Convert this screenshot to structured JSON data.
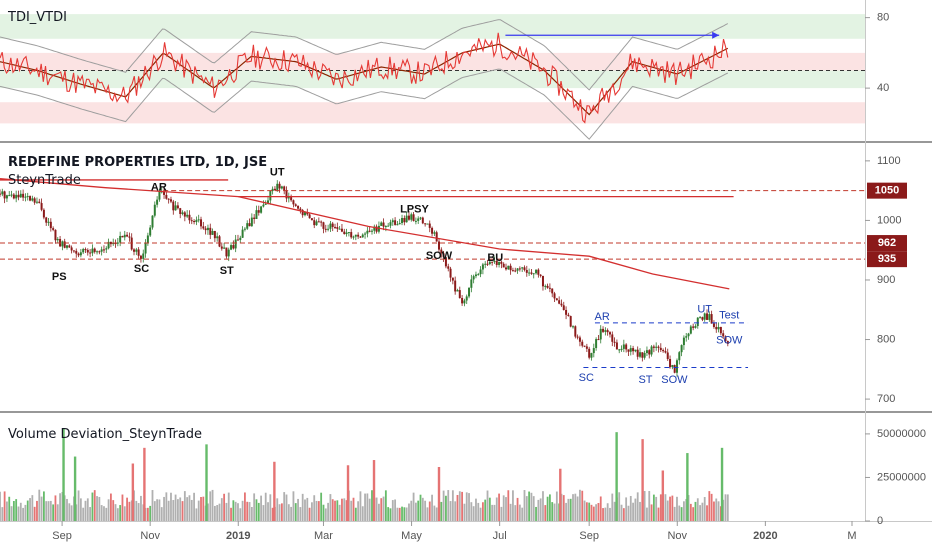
{
  "colors": {
    "up": "#2e7d32",
    "down": "#8b1a1a",
    "red": "#d32f2f",
    "blue": "#1e3a8a",
    "tdi_red": "#e53935",
    "tdi_brown": "#8b2500",
    "band": "#9e9e9e",
    "green_zone": "#e3f3e3",
    "red_zone": "#fbe3e3",
    "vol_up": "#66bb6a",
    "vol_down": "#e57373",
    "vol_neutral": "#b0b0b0",
    "axis_text": "#555555",
    "price_label_bg": "#8b1a1a"
  },
  "indicator": {
    "label": "TDI_VTDI",
    "ticks": [
      "80",
      "40"
    ],
    "ylim": [
      10,
      90
    ],
    "levels": {
      "upper_zone": [
        68,
        82
      ],
      "mid_upper_zone": [
        50,
        60
      ],
      "mid_lower_zone": [
        40,
        50
      ],
      "lower_zone": [
        20,
        32
      ],
      "midline": 50
    }
  },
  "main": {
    "title": "REDEFINE PROPERTIES LTD, 1D, JSE",
    "subtitle": "SteynTrade",
    "ylim": [
      680,
      1130
    ],
    "ticks": [
      "1100",
      "1000",
      "900",
      "800",
      "700"
    ],
    "price_labels": [
      {
        "text": "1050",
        "value": 1050
      },
      {
        "text": "962",
        "value": 962
      },
      {
        "text": "935",
        "value": 935
      }
    ],
    "wyckoff_labels": [
      {
        "text": "PS",
        "x": "2018-08-30",
        "y": 905,
        "color": "black"
      },
      {
        "text": "SC",
        "x": "2018-10-26",
        "y": 918,
        "color": "black"
      },
      {
        "text": "AR",
        "x": "2018-11-07",
        "y": 1055,
        "color": "black"
      },
      {
        "text": "ST",
        "x": "2018-12-24",
        "y": 915,
        "color": "black"
      },
      {
        "text": "UT",
        "x": "2019-01-28",
        "y": 1080,
        "color": "black"
      },
      {
        "text": "LPSY",
        "x": "2019-05-03",
        "y": 1018,
        "color": "black"
      },
      {
        "text": "SOW",
        "x": "2019-05-20",
        "y": 940,
        "color": "black"
      },
      {
        "text": "BU",
        "x": "2019-06-28",
        "y": 937,
        "color": "black"
      },
      {
        "text": "AR",
        "x": "2019-09-10",
        "y": 838,
        "color": "blue"
      },
      {
        "text": "SC",
        "x": "2019-08-30",
        "y": 735,
        "color": "blue"
      },
      {
        "text": "ST",
        "x": "2019-10-10",
        "y": 732,
        "color": "blue"
      },
      {
        "text": "SOW",
        "x": "2019-10-30",
        "y": 732,
        "color": "blue"
      },
      {
        "text": "UT",
        "x": "2019-11-20",
        "y": 850,
        "color": "blue"
      },
      {
        "text": "Test",
        "x": "2019-12-07",
        "y": 840,
        "color": "blue"
      },
      {
        "text": "SOW",
        "x": "2019-12-07",
        "y": 798,
        "color": "blue"
      }
    ]
  },
  "volume": {
    "label": "Volume Deviation_SteynTrade",
    "ticks": [
      "50000000",
      "25000000",
      "0"
    ],
    "ylim": [
      0,
      62000000
    ]
  },
  "x_axis": {
    "labels": [
      {
        "text": "Sep",
        "date": "2018-09-01"
      },
      {
        "text": "Nov",
        "date": "2018-11-01"
      },
      {
        "text": "2019",
        "date": "2019-01-01"
      },
      {
        "text": "Mar",
        "date": "2019-03-01"
      },
      {
        "text": "May",
        "date": "2019-05-01"
      },
      {
        "text": "Jul",
        "date": "2019-07-01"
      },
      {
        "text": "Sep",
        "date": "2019-09-01"
      },
      {
        "text": "Nov",
        "date": "2019-11-01"
      },
      {
        "text": "2020",
        "date": "2020-01-01"
      },
      {
        "text": "M",
        "date": "2020-03-01"
      }
    ]
  },
  "chart_data": {
    "type": "line",
    "title": "REDEFINE PROPERTIES LTD, 1D, JSE",
    "x_range": [
      "2018-07-20",
      "2020-03-10"
    ],
    "price_close": {
      "x": [
        "2018-07-20",
        "2018-08-01",
        "2018-08-15",
        "2018-08-30",
        "2018-09-15",
        "2018-10-01",
        "2018-10-15",
        "2018-10-26",
        "2018-11-07",
        "2018-11-20",
        "2018-12-05",
        "2018-12-15",
        "2018-12-24",
        "2019-01-10",
        "2019-01-28",
        "2019-02-10",
        "2019-02-25",
        "2019-03-10",
        "2019-03-25",
        "2019-04-10",
        "2019-04-25",
        "2019-05-03",
        "2019-05-15",
        "2019-05-20",
        "2019-05-28",
        "2019-06-05",
        "2019-06-15",
        "2019-06-28",
        "2019-07-10",
        "2019-07-25",
        "2019-08-05",
        "2019-08-15",
        "2019-08-25",
        "2019-09-01",
        "2019-09-10",
        "2019-09-20",
        "2019-09-30",
        "2019-10-10",
        "2019-10-20",
        "2019-10-30",
        "2019-11-05",
        "2019-11-15",
        "2019-11-22",
        "2019-12-01",
        "2019-12-07"
      ],
      "y": [
        1045,
        1040,
        1030,
        960,
        945,
        955,
        975,
        930,
        1050,
        1015,
        1000,
        975,
        945,
        1000,
        1060,
        1020,
        995,
        985,
        975,
        990,
        1000,
        1005,
        985,
        955,
        905,
        860,
        915,
        930,
        915,
        915,
        880,
        845,
        800,
        775,
        820,
        790,
        780,
        775,
        790,
        745,
        800,
        830,
        840,
        810,
        790
      ]
    },
    "series": [
      {
        "name": "sma",
        "x": [
          "2018-07-20",
          "2018-10-01",
          "2019-01-01",
          "2019-04-01",
          "2019-07-01",
          "2019-09-01",
          "2019-10-15",
          "2019-12-07"
        ],
        "y": [
          1070,
          1055,
          1040,
          990,
          952,
          940,
          910,
          885
        ]
      },
      {
        "name": "resistance_top",
        "x": [
          "2018-07-20",
          "2018-12-25"
        ],
        "y": [
          1068,
          1068
        ]
      },
      {
        "name": "lpsy_resistance",
        "x": [
          "2019-01-01",
          "2019-12-10"
        ],
        "y": [
          1040,
          1040
        ]
      },
      {
        "name": "level_1050",
        "x": [
          "2018-11-10",
          "2020-03-10"
        ],
        "y": [
          1050,
          1050
        ]
      },
      {
        "name": "level_962",
        "x": [
          "2018-07-20",
          "2020-03-10"
        ],
        "y": [
          962,
          962
        ]
      },
      {
        "name": "level_935",
        "x": [
          "2018-07-20",
          "2020-03-10"
        ],
        "y": [
          935,
          935
        ]
      },
      {
        "name": "range_top",
        "x": [
          "2019-09-05",
          "2019-12-20"
        ],
        "y": [
          828,
          828
        ]
      },
      {
        "name": "range_bottom",
        "x": [
          "2019-08-28",
          "2019-12-20"
        ],
        "y": [
          753,
          753
        ]
      }
    ],
    "tdi": {
      "x": [
        "2018-07-20",
        "2018-08-15",
        "2018-09-15",
        "2018-10-15",
        "2018-11-10",
        "2018-12-15",
        "2019-01-10",
        "2019-02-10",
        "2019-03-10",
        "2019-04-10",
        "2019-05-10",
        "2019-06-05",
        "2019-07-01",
        "2019-08-01",
        "2019-09-01",
        "2019-10-01",
        "2019-11-01",
        "2019-12-07"
      ],
      "y": [
        55,
        50,
        42,
        35,
        60,
        40,
        58,
        55,
        45,
        52,
        48,
        60,
        65,
        50,
        25,
        55,
        48,
        63
      ]
    },
    "tdi_arrow": {
      "x": [
        "2019-07-05",
        "2019-11-30"
      ],
      "y": [
        70,
        70
      ]
    },
    "volume": {
      "spikes": [
        {
          "x": "2018-09-02",
          "v": 53000000,
          "dir": "up"
        },
        {
          "x": "2018-09-10",
          "v": 37000000,
          "dir": "up"
        },
        {
          "x": "2018-10-20",
          "v": 33000000,
          "dir": "down"
        },
        {
          "x": "2018-10-28",
          "v": 42000000,
          "dir": "down"
        },
        {
          "x": "2018-12-10",
          "v": 44000000,
          "dir": "up"
        },
        {
          "x": "2019-01-26",
          "v": 34000000,
          "dir": "down"
        },
        {
          "x": "2019-03-18",
          "v": 32000000,
          "dir": "down"
        },
        {
          "x": "2019-04-05",
          "v": 35000000,
          "dir": "down"
        },
        {
          "x": "2019-05-20",
          "v": 31000000,
          "dir": "down"
        },
        {
          "x": "2019-08-12",
          "v": 30000000,
          "dir": "down"
        },
        {
          "x": "2019-09-20",
          "v": 51000000,
          "dir": "up"
        },
        {
          "x": "2019-10-08",
          "v": 47000000,
          "dir": "down"
        },
        {
          "x": "2019-10-22",
          "v": 29000000,
          "dir": "down"
        },
        {
          "x": "2019-11-08",
          "v": 39000000,
          "dir": "up"
        },
        {
          "x": "2019-12-02",
          "v": 42000000,
          "dir": "up"
        }
      ],
      "baseline": 12000000
    }
  }
}
